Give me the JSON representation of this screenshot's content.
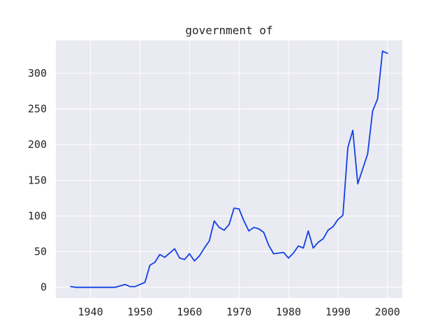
{
  "chart_data": {
    "type": "line",
    "title": "government of",
    "xlabel": "",
    "ylabel": "",
    "xlim": [
      1933,
      2003
    ],
    "ylim": [
      -15,
      346
    ],
    "xticks": [
      1940,
      1950,
      1960,
      1970,
      1980,
      1990,
      2000
    ],
    "yticks": [
      0,
      50,
      100,
      150,
      200,
      250,
      300
    ],
    "grid": true,
    "series_color": "#1040e6",
    "series": [
      {
        "x": [
          1936,
          1937,
          1938,
          1939,
          1940,
          1941,
          1942,
          1943,
          1944,
          1945,
          1946,
          1947,
          1948,
          1949,
          1950,
          1951,
          1952,
          1953,
          1954,
          1955,
          1956,
          1957,
          1958,
          1959,
          1960,
          1961,
          1962,
          1963,
          1964,
          1965,
          1966,
          1967,
          1968,
          1969,
          1970,
          1971,
          1972,
          1973,
          1974,
          1975,
          1976,
          1977,
          1978,
          1979,
          1980,
          1981,
          1982,
          1983,
          1984,
          1985,
          1986,
          1987,
          1988,
          1989,
          1990,
          1991,
          1992,
          1993,
          1994,
          1995,
          1996,
          1997,
          1998,
          1999,
          2000
        ],
        "y": [
          1,
          0,
          0,
          0,
          0,
          0,
          0,
          0,
          0,
          0,
          2,
          4,
          1,
          1,
          4,
          7,
          31,
          35,
          46,
          42,
          48,
          54,
          41,
          39,
          47,
          37,
          44,
          55,
          65,
          93,
          84,
          80,
          88,
          111,
          110,
          93,
          79,
          84,
          82,
          77,
          59,
          47,
          48,
          49,
          41,
          48,
          58,
          55,
          79,
          55,
          63,
          68,
          80,
          85,
          95,
          101,
          196,
          220,
          145,
          166,
          187,
          247,
          264,
          331,
          328
        ]
      }
    ]
  }
}
